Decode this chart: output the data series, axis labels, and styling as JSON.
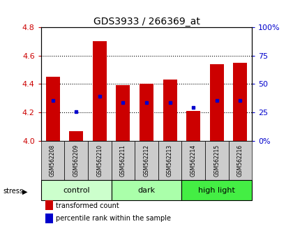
{
  "title": "GDS3933 / 266369_at",
  "samples": [
    "GSM562208",
    "GSM562209",
    "GSM562210",
    "GSM562211",
    "GSM562212",
    "GSM562213",
    "GSM562214",
    "GSM562215",
    "GSM562216"
  ],
  "bar_values": [
    4.45,
    4.07,
    4.7,
    4.39,
    4.4,
    4.43,
    4.21,
    4.54,
    4.55
  ],
  "blue_marker_values": [
    4.285,
    4.205,
    4.315,
    4.27,
    4.27,
    4.27,
    4.235,
    4.285,
    4.285
  ],
  "y_min": 4.0,
  "y_max": 4.8,
  "y_ticks": [
    4.0,
    4.2,
    4.4,
    4.6,
    4.8
  ],
  "right_y_ticks": [
    0,
    25,
    50,
    75,
    100
  ],
  "right_y_tick_labels": [
    "0%",
    "25",
    "50",
    "75",
    "100%"
  ],
  "bar_color": "#cc0000",
  "marker_color": "#0000cc",
  "groups": [
    {
      "label": "control",
      "samples": [
        0,
        1,
        2
      ],
      "color": "#ccffcc"
    },
    {
      "label": "dark",
      "samples": [
        3,
        4,
        5
      ],
      "color": "#aaffaa"
    },
    {
      "label": "high light",
      "samples": [
        6,
        7,
        8
      ],
      "color": "#44ee44"
    }
  ],
  "stress_label": "stress",
  "tick_color_left": "#cc0000",
  "tick_color_right": "#0000cc",
  "legend_red": "transformed count",
  "legend_blue": "percentile rank within the sample",
  "bg_sample_labels": "#cccccc"
}
